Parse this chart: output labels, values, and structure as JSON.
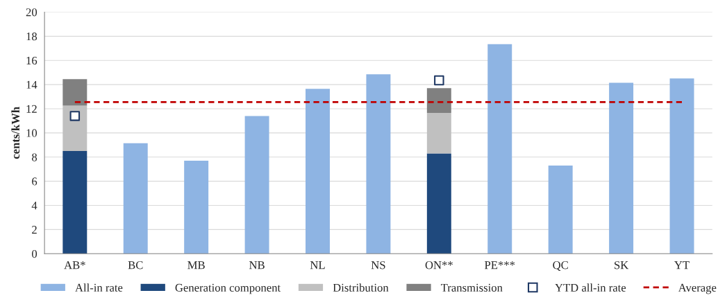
{
  "chart_data": {
    "type": "bar",
    "stacked": true,
    "ylabel": "cents/kWh",
    "categories": [
      "AB*",
      "BC",
      "MB",
      "NB",
      "NL",
      "NS",
      "ON**",
      "PE***",
      "QC",
      "SK",
      "YT"
    ],
    "series": [
      {
        "name": "All-in rate",
        "color": "#8eb4e3",
        "values": [
          null,
          9.15,
          7.7,
          11.4,
          13.65,
          14.85,
          null,
          17.35,
          7.3,
          14.15,
          14.5
        ]
      },
      {
        "name": "Generation component",
        "color": "#1f497d",
        "values": [
          8.5,
          null,
          null,
          null,
          null,
          null,
          8.3,
          null,
          null,
          null,
          null
        ]
      },
      {
        "name": "Distribution",
        "color": "#c0c0c0",
        "values": [
          3.75,
          null,
          null,
          null,
          null,
          null,
          3.35,
          null,
          null,
          null,
          null
        ]
      },
      {
        "name": "Transmission",
        "color": "#808080",
        "values": [
          2.2,
          null,
          null,
          null,
          null,
          null,
          2.05,
          null,
          null,
          null,
          null
        ]
      },
      {
        "name": "YTD all-in rate",
        "type": "scatter",
        "marker": "square",
        "color": "#1f3864",
        "values": [
          11.4,
          null,
          null,
          null,
          null,
          null,
          14.35,
          null,
          null,
          null,
          null
        ]
      },
      {
        "name": "Average",
        "type": "line",
        "line_style": "dashed",
        "marker": "none",
        "color": "#c00000",
        "values": [
          12.55,
          12.55,
          12.55,
          12.55,
          12.55,
          12.55,
          12.55,
          12.55,
          12.55,
          12.55,
          12.55
        ]
      }
    ],
    "ylim": [
      0,
      20
    ],
    "yticks": [
      0,
      2,
      4,
      6,
      8,
      10,
      12,
      14,
      16,
      18,
      20
    ],
    "grid": "y",
    "legend": "bottom"
  }
}
